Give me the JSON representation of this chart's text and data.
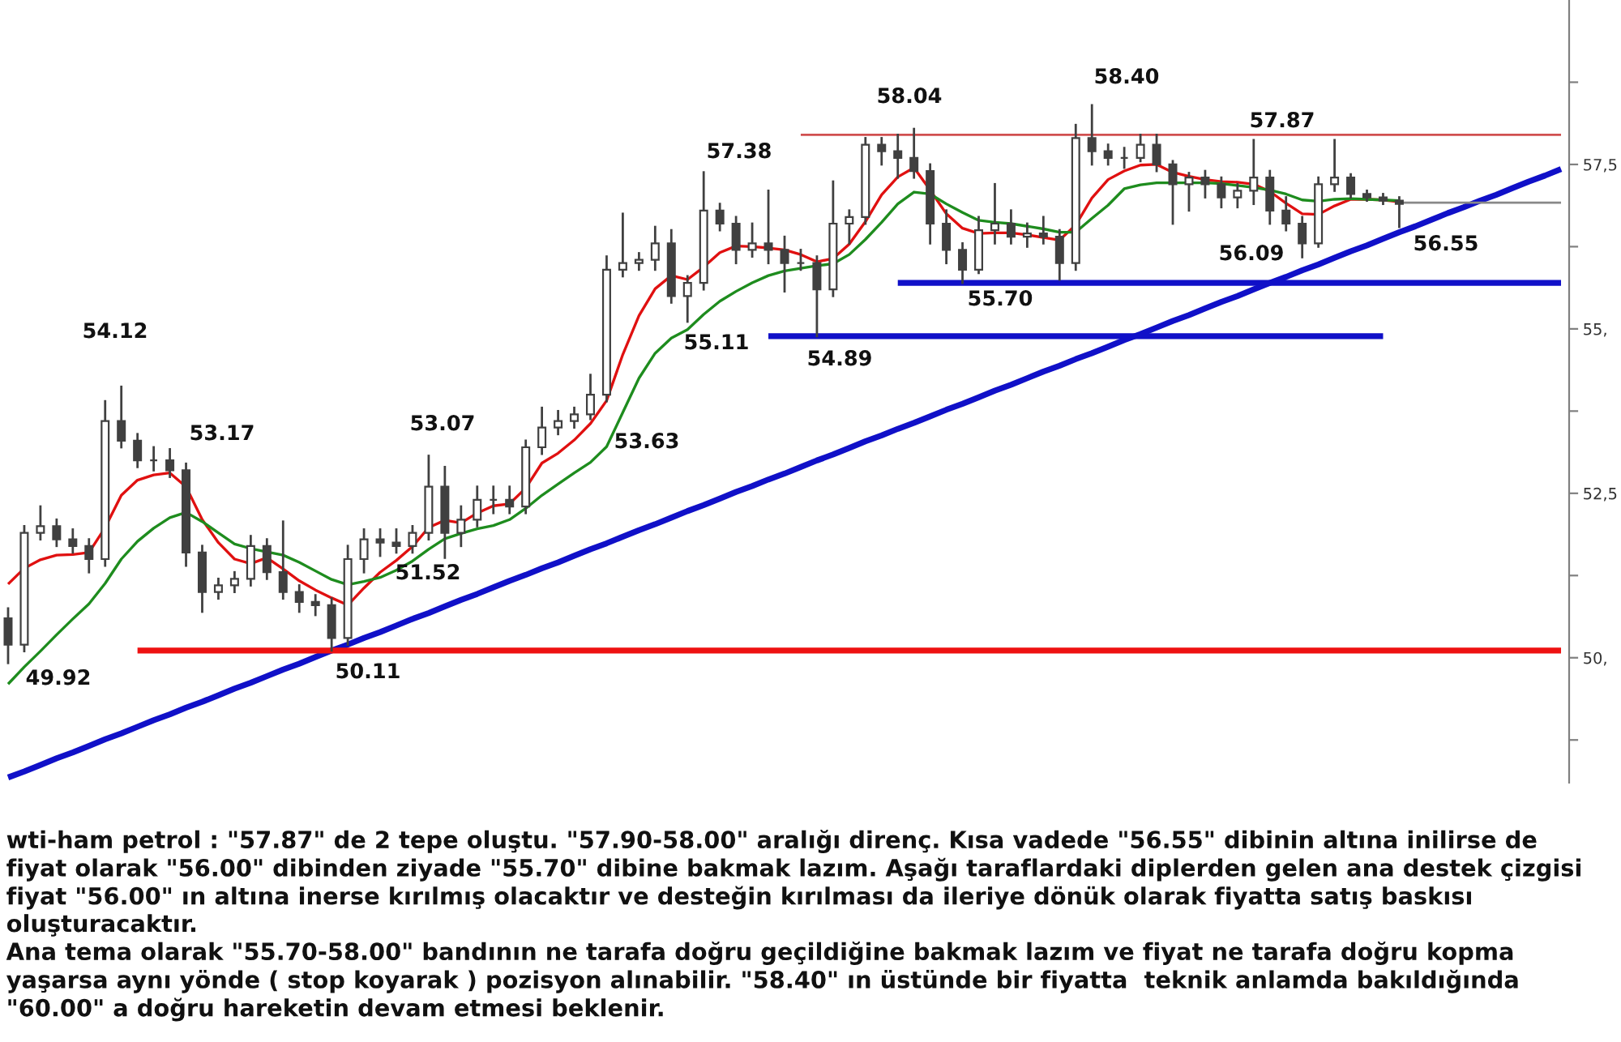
{
  "chart_data": {
    "type": "candlestick",
    "color": "#404040",
    "categories": [
      null,
      null,
      null,
      null,
      null,
      null,
      null,
      null,
      null,
      null,
      null,
      null,
      null,
      null,
      null,
      null,
      null,
      null,
      null,
      null,
      null,
      null,
      null,
      null,
      null,
      null,
      null,
      null,
      null,
      null,
      null,
      null,
      null,
      null,
      null,
      null,
      null,
      null,
      null,
      null,
      null,
      null,
      null,
      null,
      null,
      null,
      null,
      null,
      null,
      null,
      null,
      null,
      null,
      null,
      null,
      null,
      null,
      null,
      null,
      null,
      null,
      null,
      null,
      null,
      null,
      null,
      null,
      null,
      null,
      null,
      null,
      null,
      null,
      null,
      null,
      null,
      null,
      null,
      null,
      null,
      null,
      null,
      null,
      null,
      null,
      null,
      null,
      null,
      null,
      null,
      null,
      null,
      null,
      null,
      null,
      null,
      null
    ],
    "ohlc": [
      [
        50.6,
        50.75,
        49.92,
        50.2
      ],
      [
        50.2,
        52.0,
        50.1,
        51.9
      ],
      [
        51.9,
        52.3,
        51.8,
        52.0
      ],
      [
        52.0,
        52.1,
        51.7,
        51.8
      ],
      [
        51.8,
        51.95,
        51.6,
        51.7
      ],
      [
        51.7,
        51.8,
        51.3,
        51.5
      ],
      [
        51.5,
        53.9,
        51.4,
        53.6
      ],
      [
        53.6,
        54.12,
        53.2,
        53.3
      ],
      [
        53.3,
        53.4,
        52.9,
        53.0
      ],
      [
        53.0,
        53.2,
        52.85,
        53.0
      ],
      [
        53.0,
        53.17,
        52.75,
        52.85
      ],
      [
        52.85,
        52.95,
        51.4,
        51.6
      ],
      [
        51.6,
        51.7,
        50.7,
        51.0
      ],
      [
        51.0,
        51.2,
        50.9,
        51.1
      ],
      [
        51.1,
        51.3,
        51.0,
        51.2
      ],
      [
        51.2,
        51.85,
        51.1,
        51.7
      ],
      [
        51.7,
        51.8,
        51.2,
        51.3
      ],
      [
        51.3,
        52.07,
        50.9,
        51.0
      ],
      [
        51.0,
        51.1,
        50.7,
        50.85
      ],
      [
        50.85,
        50.95,
        50.65,
        50.8
      ],
      [
        50.8,
        50.9,
        50.11,
        50.3
      ],
      [
        50.3,
        51.7,
        50.2,
        51.5
      ],
      [
        51.5,
        51.95,
        51.3,
        51.8
      ],
      [
        51.8,
        51.95,
        51.55,
        51.75
      ],
      [
        51.75,
        51.95,
        51.6,
        51.7
      ],
      [
        51.7,
        52.0,
        51.6,
        51.9
      ],
      [
        51.9,
        53.07,
        51.8,
        52.6
      ],
      [
        52.6,
        52.9,
        51.52,
        51.9
      ],
      [
        51.9,
        52.3,
        51.7,
        52.1
      ],
      [
        52.1,
        52.6,
        52.0,
        52.4
      ],
      [
        52.4,
        52.6,
        52.2,
        52.4
      ],
      [
        52.4,
        52.6,
        52.2,
        52.3
      ],
      [
        52.3,
        53.3,
        52.2,
        53.2
      ],
      [
        53.2,
        53.8,
        53.1,
        53.5
      ],
      [
        53.5,
        53.75,
        53.4,
        53.6
      ],
      [
        53.6,
        53.8,
        53.5,
        53.7
      ],
      [
        53.7,
        54.3,
        53.63,
        54.0
      ],
      [
        54.0,
        56.1,
        53.9,
        55.9
      ],
      [
        55.9,
        56.75,
        55.8,
        56.0
      ],
      [
        56.0,
        56.15,
        55.9,
        56.05
      ],
      [
        56.05,
        56.55,
        55.9,
        56.3
      ],
      [
        56.3,
        56.5,
        55.4,
        55.5
      ],
      [
        55.5,
        55.8,
        55.11,
        55.7
      ],
      [
        55.7,
        57.38,
        55.6,
        56.8
      ],
      [
        56.8,
        56.9,
        56.5,
        56.6
      ],
      [
        56.6,
        56.7,
        56.0,
        56.2
      ],
      [
        56.2,
        56.6,
        56.1,
        56.3
      ],
      [
        56.3,
        57.1,
        56.0,
        56.2
      ],
      [
        56.2,
        56.4,
        55.57,
        56.0
      ],
      [
        56.0,
        56.2,
        55.9,
        56.0
      ],
      [
        56.0,
        56.1,
        54.89,
        55.6
      ],
      [
        55.6,
        57.24,
        55.5,
        56.6
      ],
      [
        56.6,
        56.8,
        56.3,
        56.7
      ],
      [
        56.7,
        57.9,
        56.6,
        57.8
      ],
      [
        57.8,
        57.9,
        57.5,
        57.7
      ],
      [
        57.7,
        57.95,
        57.3,
        57.6
      ],
      [
        57.6,
        58.04,
        57.3,
        57.4
      ],
      [
        57.4,
        57.5,
        56.3,
        56.6
      ],
      [
        56.6,
        56.8,
        56.0,
        56.2
      ],
      [
        56.2,
        56.3,
        55.7,
        55.9
      ],
      [
        55.9,
        56.7,
        55.85,
        56.5
      ],
      [
        56.5,
        57.2,
        56.3,
        56.6
      ],
      [
        56.6,
        56.8,
        56.3,
        56.4
      ],
      [
        56.4,
        56.6,
        56.25,
        56.45
      ],
      [
        56.45,
        56.7,
        56.3,
        56.4
      ],
      [
        56.4,
        56.5,
        55.75,
        56.0
      ],
      [
        56.0,
        58.1,
        55.9,
        57.9
      ],
      [
        57.9,
        58.4,
        57.5,
        57.7
      ],
      [
        57.7,
        57.8,
        57.5,
        57.6
      ],
      [
        57.6,
        57.75,
        57.45,
        57.6
      ],
      [
        57.6,
        57.95,
        57.55,
        57.8
      ],
      [
        57.8,
        57.95,
        57.4,
        57.5
      ],
      [
        57.5,
        57.55,
        56.6,
        57.2
      ],
      [
        57.2,
        57.37,
        56.8,
        57.3
      ],
      [
        57.3,
        57.4,
        57.0,
        57.2
      ],
      [
        57.2,
        57.3,
        56.85,
        57.0
      ],
      [
        57.0,
        57.2,
        56.85,
        57.1
      ],
      [
        57.1,
        57.87,
        56.9,
        57.3
      ],
      [
        57.3,
        57.4,
        56.6,
        56.8
      ],
      [
        56.8,
        57.0,
        56.5,
        56.6
      ],
      [
        56.6,
        56.7,
        56.09,
        56.3
      ],
      [
        56.3,
        57.3,
        56.25,
        57.2
      ],
      [
        57.2,
        57.87,
        57.1,
        57.3
      ],
      [
        57.3,
        57.35,
        57.0,
        57.05
      ],
      [
        57.05,
        57.1,
        56.95,
        57.0
      ],
      [
        57.0,
        57.05,
        56.9,
        56.95
      ],
      [
        56.95,
        57.0,
        56.55,
        56.9
      ],
      null,
      null,
      null,
      null,
      null,
      null,
      null,
      null,
      null,
      null
    ],
    "series": [
      {
        "type": "line",
        "color": "#e01010",
        "values": [
          51.12,
          51.36,
          51.49,
          51.56,
          51.57,
          51.6,
          51.98,
          52.47,
          52.7,
          52.78,
          52.81,
          52.6,
          52.1,
          51.75,
          51.5,
          51.43,
          51.52,
          51.35,
          51.17,
          51.03,
          50.91,
          50.8,
          51.06,
          51.3,
          51.48,
          51.69,
          51.98,
          52.09,
          52.05,
          52.2,
          52.31,
          52.34,
          52.58,
          52.96,
          53.11,
          53.31,
          53.56,
          53.91,
          54.61,
          55.2,
          55.61,
          55.81,
          55.75,
          55.94,
          56.16,
          56.26,
          56.25,
          56.23,
          56.2,
          56.13,
          56.02,
          56.07,
          56.29,
          56.63,
          57.04,
          57.31,
          57.45,
          57.11,
          56.75,
          56.53,
          56.45,
          56.46,
          56.46,
          56.43,
          56.39,
          56.35,
          56.58,
          56.99,
          57.27,
          57.4,
          57.49,
          57.5,
          57.38,
          57.32,
          57.27,
          57.24,
          57.23,
          57.2,
          57.09,
          56.91,
          56.75,
          56.74,
          56.87,
          56.97,
          56.97,
          56.96,
          56.93,
          null,
          null,
          null,
          null,
          null,
          null,
          null,
          null,
          null,
          null
        ]
      },
      {
        "type": "line",
        "color": "#1e8c1e",
        "values": [
          49.6,
          49.86,
          50.1,
          50.35,
          50.59,
          50.82,
          51.13,
          51.5,
          51.77,
          51.97,
          52.13,
          52.21,
          52.07,
          51.9,
          51.73,
          51.66,
          51.61,
          51.56,
          51.45,
          51.32,
          51.19,
          51.11,
          51.16,
          51.22,
          51.33,
          51.47,
          51.65,
          51.81,
          51.89,
          51.96,
          52.01,
          52.1,
          52.27,
          52.47,
          52.64,
          52.81,
          52.97,
          53.21,
          53.73,
          54.25,
          54.63,
          54.86,
          54.99,
          55.22,
          55.42,
          55.57,
          55.7,
          55.81,
          55.88,
          55.92,
          55.96,
          55.99,
          56.13,
          56.36,
          56.62,
          56.9,
          57.08,
          57.05,
          56.9,
          56.77,
          56.65,
          56.62,
          56.6,
          56.56,
          56.52,
          56.47,
          56.47,
          56.68,
          56.88,
          57.13,
          57.19,
          57.22,
          57.22,
          57.22,
          57.22,
          57.21,
          57.18,
          57.15,
          57.11,
          57.05,
          56.96,
          56.94,
          56.97,
          56.98,
          56.97,
          56.96,
          56.95,
          null,
          null,
          null,
          null,
          null,
          null,
          null,
          null,
          null,
          null
        ]
      },
      {
        "type": "line",
        "color": "#1010c8",
        "values": [
          48.18,
          48.27,
          48.37,
          48.47,
          48.56,
          48.66,
          48.76,
          48.85,
          48.95,
          49.05,
          49.14,
          49.24,
          49.33,
          49.43,
          49.53,
          49.62,
          49.72,
          49.82,
          49.91,
          50.01,
          50.11,
          50.2,
          50.3,
          50.39,
          50.49,
          50.59,
          50.68,
          50.78,
          50.88,
          50.97,
          51.07,
          51.17,
          51.26,
          51.36,
          51.45,
          51.55,
          51.65,
          51.74,
          51.84,
          51.94,
          52.03,
          52.13,
          52.23,
          52.32,
          52.42,
          52.52,
          52.61,
          52.71,
          52.8,
          52.9,
          53.0,
          53.09,
          53.19,
          53.29,
          53.38,
          53.48,
          53.57,
          53.67,
          53.77,
          53.86,
          53.96,
          54.06,
          54.15,
          54.25,
          54.35,
          54.44,
          54.54,
          54.63,
          54.73,
          54.83,
          54.92,
          55.02,
          55.12,
          55.21,
          55.31,
          55.41,
          55.5,
          55.6,
          55.7,
          55.79,
          55.89,
          55.98,
          56.08,
          56.18,
          56.27,
          56.37,
          56.47,
          56.56,
          56.66,
          56.76,
          56.85,
          56.95,
          57.04,
          57.14,
          57.24,
          57.33,
          57.43
        ]
      },
      {
        "type": "line",
        "color": "#ee1111",
        "values": [
          null,
          null,
          null,
          null,
          null,
          null,
          null,
          null,
          50.11,
          50.11,
          50.11,
          50.11,
          50.11,
          50.11,
          50.11,
          50.11,
          50.11,
          50.11,
          50.11,
          50.11,
          50.11,
          50.11,
          50.11,
          50.11,
          50.11,
          50.11,
          50.11,
          50.11,
          50.11,
          50.11,
          50.11,
          50.11,
          50.11,
          50.11,
          50.11,
          50.11,
          50.11,
          50.11,
          50.11,
          50.11,
          50.11,
          50.11,
          50.11,
          50.11,
          50.11,
          50.11,
          50.11,
          50.11,
          50.11,
          50.11,
          50.11,
          50.11,
          50.11,
          50.11,
          50.11,
          50.11,
          50.11,
          50.11,
          50.11,
          50.11,
          50.11,
          50.11,
          50.11,
          50.11,
          50.11,
          50.11,
          50.11,
          50.11,
          50.11,
          50.11,
          50.11,
          50.11,
          50.11,
          50.11,
          50.11,
          50.11,
          50.11,
          50.11,
          50.11,
          50.11,
          50.11,
          50.11,
          50.11,
          50.11,
          50.11,
          50.11,
          50.11,
          50.11,
          50.11,
          50.11,
          50.11,
          50.11,
          50.11,
          50.11,
          50.11,
          50.11,
          50.11
        ]
      },
      {
        "type": "line",
        "color": "#1010c8",
        "values": [
          null,
          null,
          null,
          null,
          null,
          null,
          null,
          null,
          null,
          null,
          null,
          null,
          null,
          null,
          null,
          null,
          null,
          null,
          null,
          null,
          null,
          null,
          null,
          null,
          null,
          null,
          null,
          null,
          null,
          null,
          null,
          null,
          null,
          null,
          null,
          null,
          null,
          null,
          null,
          null,
          null,
          null,
          null,
          null,
          null,
          null,
          null,
          null,
          null,
          null,
          null,
          null,
          null,
          null,
          null,
          55.7,
          55.7,
          55.7,
          55.7,
          55.7,
          55.7,
          55.7,
          55.7,
          55.7,
          55.7,
          55.7,
          55.7,
          55.7,
          55.7,
          55.7,
          55.7,
          55.7,
          55.7,
          55.7,
          55.7,
          55.7,
          55.7,
          55.7,
          55.7,
          55.7,
          55.7,
          55.7,
          55.7,
          55.7,
          55.7,
          55.7,
          55.7,
          55.7,
          55.7,
          55.7,
          55.7,
          55.7,
          55.7,
          55.7,
          55.7,
          55.7,
          55.7
        ]
      },
      {
        "type": "line",
        "color": "#1010c8",
        "values": [
          null,
          null,
          null,
          null,
          null,
          null,
          null,
          null,
          null,
          null,
          null,
          null,
          null,
          null,
          null,
          null,
          null,
          null,
          null,
          null,
          null,
          null,
          null,
          null,
          null,
          null,
          null,
          null,
          null,
          null,
          null,
          null,
          null,
          null,
          null,
          null,
          null,
          null,
          null,
          null,
          null,
          null,
          null,
          null,
          null,
          null,
          null,
          54.89,
          54.89,
          54.89,
          54.89,
          54.89,
          54.89,
          54.89,
          54.89,
          54.89,
          54.89,
          54.89,
          54.89,
          54.89,
          54.89,
          54.89,
          54.89,
          54.89,
          54.89,
          54.89,
          54.89,
          54.89,
          54.89,
          54.89,
          54.89,
          54.89,
          54.89,
          54.89,
          54.89,
          54.89,
          54.89,
          54.89,
          54.89,
          54.89,
          54.89,
          54.89,
          54.89,
          54.89,
          54.89,
          54.89,
          null,
          null,
          null,
          null,
          null,
          null,
          null,
          null,
          null,
          null,
          null
        ]
      },
      {
        "type": "line",
        "color": "#d05050",
        "values": [
          null,
          null,
          null,
          null,
          null,
          null,
          null,
          null,
          null,
          null,
          null,
          null,
          null,
          null,
          null,
          null,
          null,
          null,
          null,
          null,
          null,
          null,
          null,
          null,
          null,
          null,
          null,
          null,
          null,
          null,
          null,
          null,
          null,
          null,
          null,
          null,
          null,
          null,
          null,
          null,
          null,
          null,
          null,
          null,
          null,
          null,
          null,
          null,
          null,
          57.95,
          57.95,
          57.95,
          57.95,
          57.95,
          57.95,
          57.95,
          57.95,
          57.95,
          57.95,
          57.95,
          57.95,
          57.95,
          57.95,
          57.95,
          57.95,
          57.95,
          57.95,
          57.95,
          57.95,
          57.95,
          57.95,
          57.95,
          57.95,
          57.95,
          57.95,
          57.95,
          57.95,
          57.95,
          57.95,
          57.95,
          57.95,
          57.95,
          57.95,
          57.95,
          57.95,
          57.95,
          57.95,
          57.95,
          57.95,
          57.95,
          57.95,
          57.95,
          57.95,
          57.95,
          57.95,
          57.95,
          57.95
        ]
      },
      {
        "type": "line",
        "color": "#888888",
        "values": [
          null,
          null,
          null,
          null,
          null,
          null,
          null,
          null,
          null,
          null,
          null,
          null,
          null,
          null,
          null,
          null,
          null,
          null,
          null,
          null,
          null,
          null,
          null,
          null,
          null,
          null,
          null,
          null,
          null,
          null,
          null,
          null,
          null,
          null,
          null,
          null,
          null,
          null,
          null,
          null,
          null,
          null,
          null,
          null,
          null,
          null,
          null,
          null,
          null,
          null,
          null,
          null,
          null,
          null,
          null,
          null,
          null,
          null,
          null,
          null,
          null,
          null,
          null,
          null,
          null,
          null,
          null,
          null,
          null,
          null,
          null,
          null,
          null,
          null,
          null,
          null,
          null,
          null,
          null,
          null,
          null,
          null,
          null,
          null,
          null,
          null,
          56.92,
          56.92,
          56.92,
          56.92,
          56.92,
          56.92,
          56.92,
          56.92,
          56.92,
          56.92,
          56.92
        ]
      }
    ],
    "ylim": [
      48.1,
      60.0
    ],
    "yticks": [
      {
        "value": 48.75,
        "label": null
      },
      {
        "value": 50,
        "label": "50,"
      },
      {
        "value": 51.25,
        "label": null
      },
      {
        "value": 52.5,
        "label": "52,5"
      },
      {
        "value": 53.75,
        "label": null
      },
      {
        "value": 55,
        "label": "55,"
      },
      {
        "value": 56.25,
        "label": null
      },
      {
        "value": 57.5,
        "label": "57,5"
      },
      {
        "value": 58.75,
        "label": null
      }
    ],
    "tick_labels": "y",
    "annotations": [
      "54.12",
      "53.17",
      "49.92",
      "50.11",
      "53.07",
      "51.52",
      "53.63",
      "55.11",
      "57.38",
      "54.89",
      "58.04",
      "55.70",
      "58.40",
      "57.87",
      "56.09",
      "56.55",
      "wti-ham petrol : \"57.87\" de 2 tepe oluştu. \"57.90-58.00\" aralığı direnç. Kısa vadede \"56.55\" dibinin altına inilirse de fiyat olarak \"56.00\" dibinden ziyade \"55.70\" dibine bakmak lazım. Aşağı taraflardaki diplerden gelen ana destek çizgisi fiyat \"56.00\" ın altına inerse kırılmış olacaktır ve desteğin kırılması da ileriye dönük olarak fiyatta satış baskısı oluşturacaktır.",
      "Ana tema olarak \"55.70-58.00\" bandının ne tarafa doğru geçildiğine bakmak lazım ve fiyat ne tarafa doğru kopma yaşarsa aynı yönde ( stop koyarak ) pozisyon alınabilir. \"58.40\" ın üstünde bir fiyatta  teknik anlamda bakıldığında \"60.00\" a doğru hareketin devam etmesi beklenir."
    ]
  }
}
